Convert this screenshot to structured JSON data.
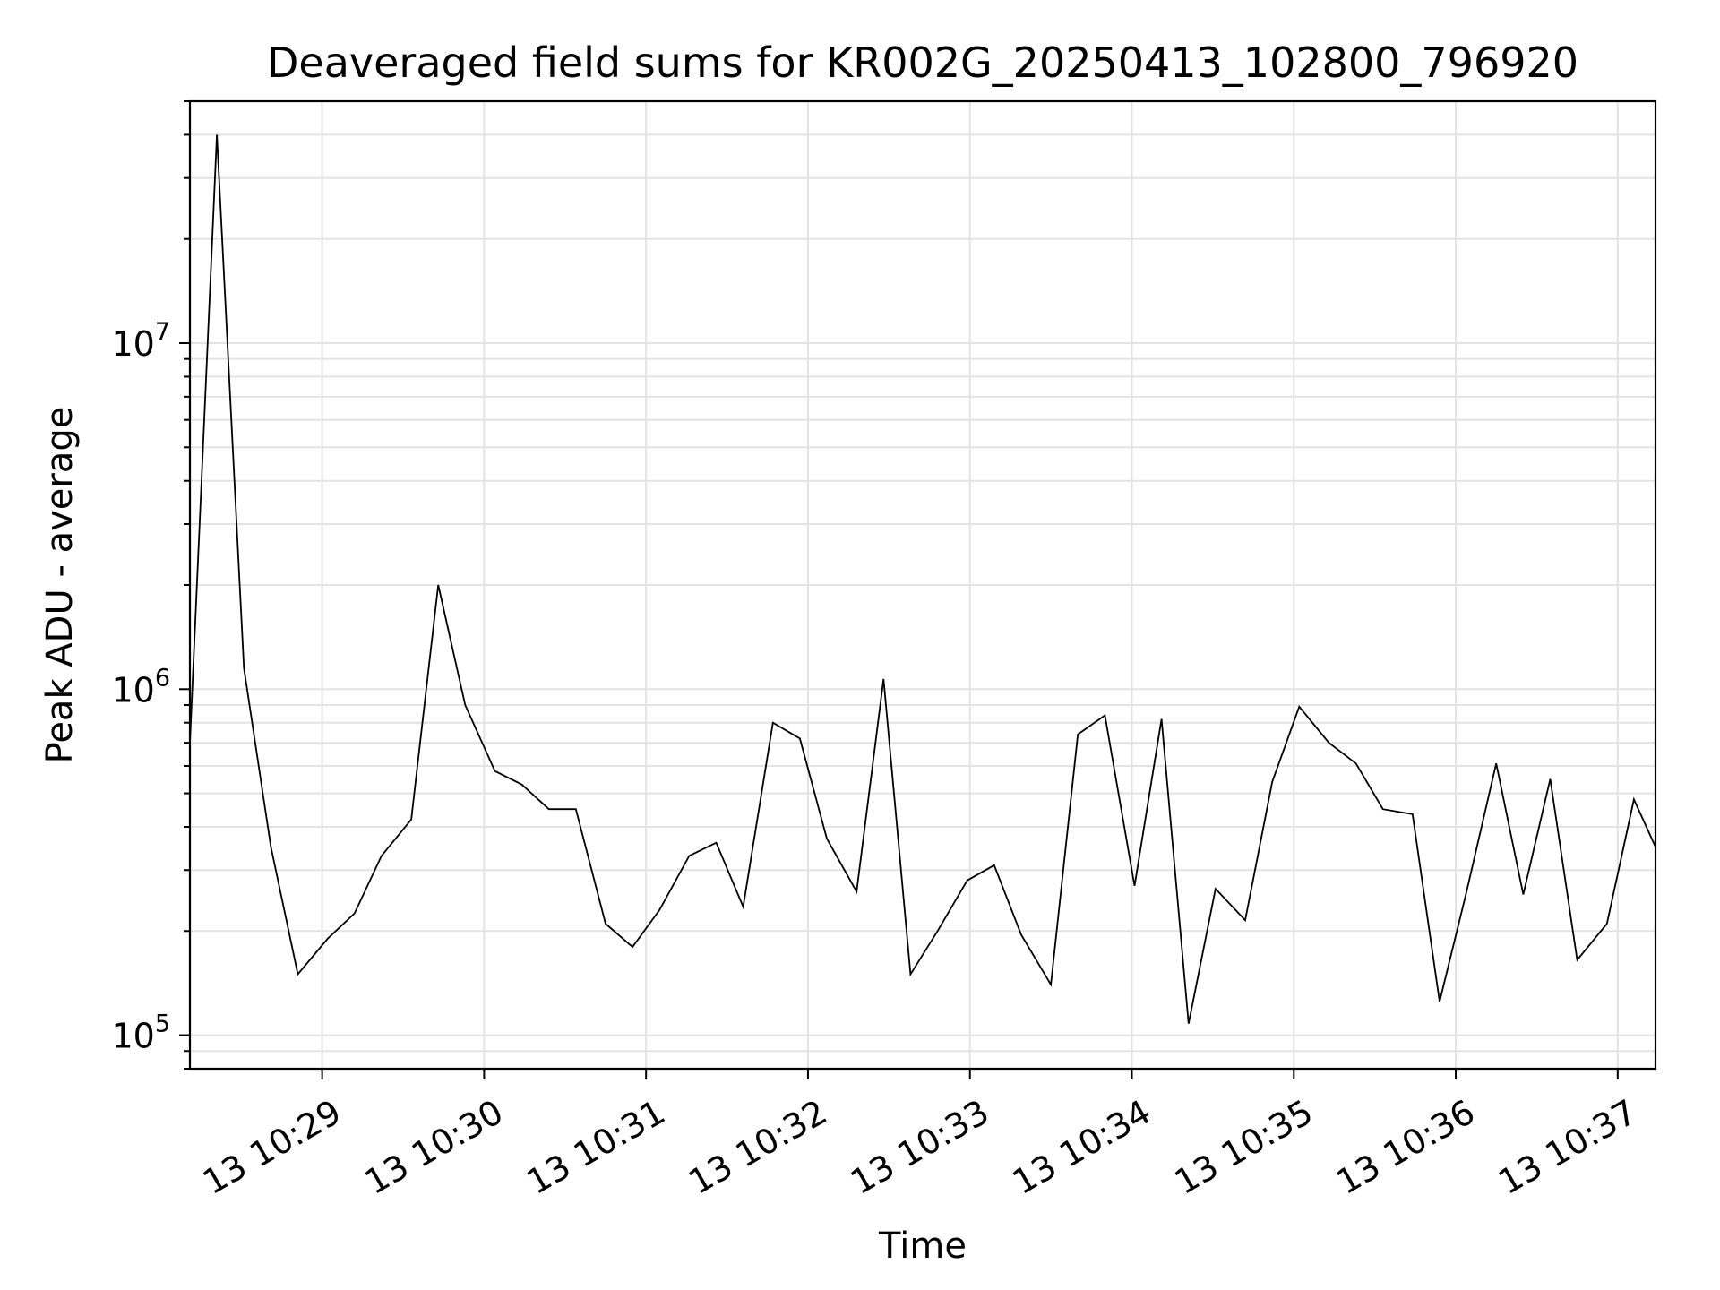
{
  "chart_data": {
    "type": "line",
    "title": "Deaveraged field sums for KR002G_20250413_102800_796920",
    "xlabel": "Time",
    "ylabel": "Peak ADU - average",
    "yscale": "log",
    "ylim": [
      80000,
      50000000
    ],
    "xlim": [
      "2025-04-13 10:28:11",
      "2025-04-13 10:37:14"
    ],
    "grid": true,
    "x_ticks": [
      {
        "t": "2025-04-13 10:29:00",
        "label": "13 10:29"
      },
      {
        "t": "2025-04-13 10:30:00",
        "label": "13 10:30"
      },
      {
        "t": "2025-04-13 10:31:00",
        "label": "13 10:31"
      },
      {
        "t": "2025-04-13 10:32:00",
        "label": "13 10:32"
      },
      {
        "t": "2025-04-13 10:33:00",
        "label": "13 10:33"
      },
      {
        "t": "2025-04-13 10:34:00",
        "label": "13 10:34"
      },
      {
        "t": "2025-04-13 10:35:00",
        "label": "13 10:35"
      },
      {
        "t": "2025-04-13 10:36:00",
        "label": "13 10:36"
      },
      {
        "t": "2025-04-13 10:37:00",
        "label": "13 10:37"
      }
    ],
    "y_ticks": [
      {
        "value": 100000,
        "base": "10",
        "exp": "5"
      },
      {
        "value": 1000000,
        "base": "10",
        "exp": "6"
      },
      {
        "value": 10000000,
        "base": "10",
        "exp": "7"
      }
    ],
    "series": [
      {
        "color": "#000000",
        "x": [
          "2025-04-13 10:28:11",
          "2025-04-13 10:28:21",
          "2025-04-13 10:28:31",
          "2025-04-13 10:28:41",
          "2025-04-13 10:28:51",
          "2025-04-13 10:29:02",
          "2025-04-13 10:29:12",
          "2025-04-13 10:29:22",
          "2025-04-13 10:29:33",
          "2025-04-13 10:29:43",
          "2025-04-13 10:29:53",
          "2025-04-13 10:30:04",
          "2025-04-13 10:30:14",
          "2025-04-13 10:30:24",
          "2025-04-13 10:30:34",
          "2025-04-13 10:30:45",
          "2025-04-13 10:30:55",
          "2025-04-13 10:31:05",
          "2025-04-13 10:31:16",
          "2025-04-13 10:31:26",
          "2025-04-13 10:31:36",
          "2025-04-13 10:31:47",
          "2025-04-13 10:31:57",
          "2025-04-13 10:32:07",
          "2025-04-13 10:32:18",
          "2025-04-13 10:32:28",
          "2025-04-13 10:32:38",
          "2025-04-13 10:32:48",
          "2025-04-13 10:32:59",
          "2025-04-13 10:33:09",
          "2025-04-13 10:33:19",
          "2025-04-13 10:33:30",
          "2025-04-13 10:33:40",
          "2025-04-13 10:33:50",
          "2025-04-13 10:34:01",
          "2025-04-13 10:34:11",
          "2025-04-13 10:34:21",
          "2025-04-13 10:34:31",
          "2025-04-13 10:34:42",
          "2025-04-13 10:34:52",
          "2025-04-13 10:35:02",
          "2025-04-13 10:35:13",
          "2025-04-13 10:35:23",
          "2025-04-13 10:35:33",
          "2025-04-13 10:35:44",
          "2025-04-13 10:35:54",
          "2025-04-13 10:36:04",
          "2025-04-13 10:36:15",
          "2025-04-13 10:36:25",
          "2025-04-13 10:36:35",
          "2025-04-13 10:36:45",
          "2025-04-13 10:36:56",
          "2025-04-13 10:37:06",
          "2025-04-13 10:37:14"
        ],
        "y": [
          700000,
          40000000,
          1150000,
          350000,
          150000,
          190000,
          225000,
          330000,
          420000,
          2000000,
          900000,
          580000,
          530000,
          450000,
          450000,
          210000,
          180000,
          230000,
          330000,
          360000,
          235000,
          800000,
          720000,
          370000,
          260000,
          1070000,
          150000,
          200000,
          280000,
          310000,
          195000,
          140000,
          740000,
          840000,
          270000,
          820000,
          108000,
          265000,
          215000,
          540000,
          890000,
          700000,
          610000,
          450000,
          435000,
          125000,
          260000,
          610000,
          255000,
          550000,
          165000,
          210000,
          480000,
          350000
        ]
      }
    ]
  }
}
